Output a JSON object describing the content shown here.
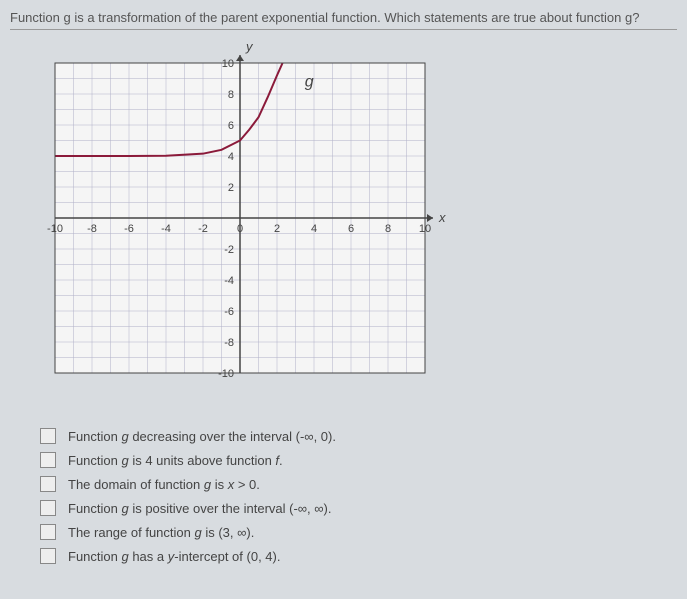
{
  "question": "Function g is a transformation of the parent exponential function. Which statements are true about function g?",
  "graph": {
    "type": "line",
    "background_color": "#f5f5f5",
    "grid_color": "#b0b0c8",
    "axis_color": "#444",
    "curve_color": "#8b1a3a",
    "curve_width": 2,
    "xlim": [
      -10,
      10
    ],
    "ylim": [
      -10,
      10
    ],
    "xtick_step": 2,
    "ytick_step": 2,
    "xlabels": [
      "-10",
      "-8",
      "-6",
      "-4",
      "-2",
      "0",
      "2",
      "4",
      "6",
      "8",
      "10"
    ],
    "ylabels": [
      "-10",
      "-8",
      "-6",
      "-4",
      "-2",
      "2",
      "4",
      "6",
      "8",
      "10"
    ],
    "xlabel": "x",
    "ylabel": "y",
    "curve_label": "g",
    "label_fontsize": 11,
    "curve_points": [
      [
        -10,
        4.0
      ],
      [
        -8,
        4.0
      ],
      [
        -6,
        4.0
      ],
      [
        -4,
        4.02
      ],
      [
        -2,
        4.15
      ],
      [
        -1,
        4.4
      ],
      [
        0,
        5
      ],
      [
        0.5,
        5.7
      ],
      [
        1,
        6.5
      ],
      [
        1.5,
        7.8
      ],
      [
        2,
        9.2
      ],
      [
        2.3,
        10.2
      ]
    ]
  },
  "answers": [
    {
      "text_html": "Function <i>g</i> decreasing over the interval (-∞, 0)."
    },
    {
      "text_html": "Function <i>g</i> is 4 units above function <i>f</i>."
    },
    {
      "text_html": "The domain of function <i>g</i> is <i>x</i> > 0."
    },
    {
      "text_html": "Function <i>g</i> is positive over the interval (-∞, ∞)."
    },
    {
      "text_html": "The range of function <i>g</i> is (3, ∞)."
    },
    {
      "text_html": "Function <i>g</i> has a <i>y</i>-intercept of (0, 4)."
    }
  ]
}
